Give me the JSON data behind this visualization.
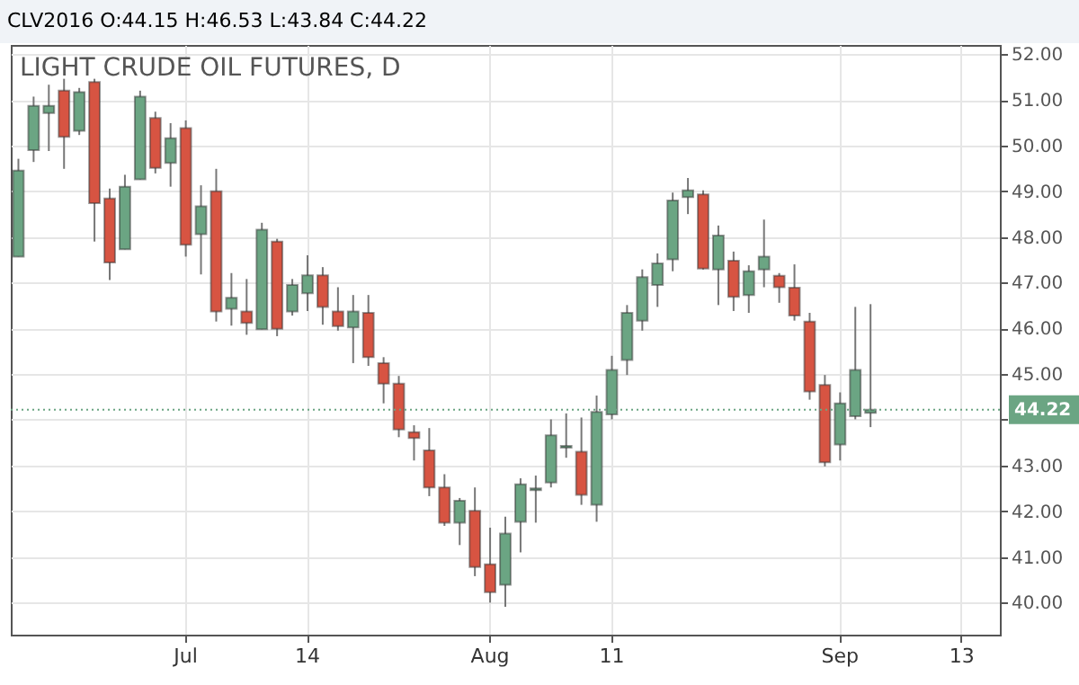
{
  "chart_data": {
    "type": "candlestick",
    "title": "LIGHT CRUDE OIL FUTURES, D",
    "annotations": [
      "CLV2016 O:44.15 H:46.53 L:43.84 C:44.22"
    ],
    "categories": [
      null,
      null,
      null,
      null,
      null,
      null,
      null,
      null,
      null,
      null,
      null,
      "Jul",
      null,
      null,
      null,
      null,
      null,
      null,
      null,
      "14",
      null,
      null,
      null,
      null,
      null,
      null,
      null,
      null,
      null,
      null,
      null,
      "Aug",
      null,
      null,
      null,
      null,
      null,
      null,
      null,
      "11",
      null,
      null,
      null,
      null,
      null,
      null,
      null,
      null,
      null,
      null,
      null,
      null,
      null,
      null,
      "Sep",
      null,
      null,
      null,
      null,
      null,
      null,
      null,
      "13",
      null,
      null
    ],
    "ohlc": [
      [
        47.57,
        49.71,
        47.57,
        49.45
      ],
      [
        49.9,
        51.07,
        49.64,
        50.87
      ],
      [
        50.71,
        51.33,
        49.88,
        50.87
      ],
      [
        51.2,
        51.46,
        49.49,
        50.19
      ],
      [
        50.32,
        51.26,
        50.23,
        51.17
      ],
      [
        51.39,
        51.46,
        47.9,
        48.74
      ],
      [
        48.84,
        49.06,
        47.06,
        47.44
      ],
      [
        47.73,
        49.36,
        47.73,
        49.1
      ],
      [
        49.26,
        51.2,
        49.26,
        51.07
      ],
      [
        50.6,
        50.74,
        49.39,
        49.51
      ],
      [
        49.62,
        50.49,
        49.1,
        50.16
      ],
      [
        50.38,
        50.55,
        47.57,
        47.83
      ],
      [
        48.06,
        49.13,
        47.18,
        48.67
      ],
      [
        49.0,
        49.49,
        46.15,
        46.37
      ],
      [
        46.43,
        47.21,
        46.06,
        46.67
      ],
      [
        46.37,
        47.08,
        45.86,
        46.12
      ],
      [
        45.98,
        48.31,
        45.98,
        48.16
      ],
      [
        47.9,
        47.96,
        45.83,
        45.99
      ],
      [
        46.37,
        47.08,
        46.28,
        46.95
      ],
      [
        46.77,
        47.6,
        46.38,
        47.16
      ],
      [
        47.16,
        47.34,
        46.08,
        46.47
      ],
      [
        46.37,
        46.9,
        45.95,
        46.05
      ],
      [
        46.02,
        46.73,
        45.24,
        46.37
      ],
      [
        46.34,
        46.73,
        45.18,
        45.37
      ],
      [
        45.24,
        45.37,
        44.36,
        44.79
      ],
      [
        44.79,
        44.96,
        43.62,
        43.79
      ],
      [
        43.73,
        43.88,
        43.11,
        43.6
      ],
      [
        43.33,
        43.82,
        42.33,
        42.52
      ],
      [
        42.52,
        42.81,
        41.68,
        41.75
      ],
      [
        41.75,
        42.29,
        41.26,
        42.23
      ],
      [
        42.01,
        42.52,
        40.58,
        40.78
      ],
      [
        40.84,
        41.64,
        40.0,
        40.23
      ],
      [
        40.39,
        41.88,
        39.91,
        41.51
      ],
      [
        41.77,
        42.72,
        41.1,
        42.59
      ],
      [
        42.46,
        42.78,
        41.75,
        42.5
      ],
      [
        42.63,
        44.01,
        42.52,
        43.66
      ],
      [
        43.39,
        44.14,
        43.17,
        43.43
      ],
      [
        43.3,
        44.05,
        42.14,
        42.36
      ],
      [
        42.14,
        44.53,
        41.77,
        44.17
      ],
      [
        44.12,
        45.4,
        44.01,
        45.09
      ],
      [
        45.31,
        46.51,
        44.98,
        46.34
      ],
      [
        46.17,
        47.29,
        45.95,
        47.12
      ],
      [
        46.95,
        47.64,
        46.47,
        47.42
      ],
      [
        47.51,
        48.97,
        47.25,
        48.8
      ],
      [
        48.87,
        49.29,
        48.5,
        49.02
      ],
      [
        48.93,
        49.02,
        47.29,
        47.31
      ],
      [
        47.29,
        48.25,
        46.51,
        48.03
      ],
      [
        47.48,
        47.68,
        46.38,
        46.69
      ],
      [
        46.73,
        47.38,
        46.34,
        47.25
      ],
      [
        47.29,
        48.38,
        46.9,
        47.57
      ],
      [
        47.15,
        47.21,
        46.56,
        46.9
      ],
      [
        46.89,
        47.4,
        46.17,
        46.28
      ],
      [
        46.15,
        46.34,
        44.44,
        44.62
      ],
      [
        44.76,
        44.98,
        42.98,
        43.07
      ],
      [
        43.46,
        44.6,
        43.11,
        44.36
      ],
      [
        44.08,
        46.47,
        44.01,
        45.09
      ],
      [
        44.15,
        46.53,
        43.84,
        44.22
      ],
      null,
      null,
      null,
      null,
      null,
      null,
      null,
      null
    ],
    "colors": [
      "#6ba583",
      "#6ba583",
      "#6ba583",
      "#d75442",
      "#6ba583",
      "#d75442",
      "#d75442",
      "#6ba583",
      "#6ba583",
      "#d75442",
      "#6ba583",
      "#d75442",
      "#6ba583",
      "#d75442",
      "#6ba583",
      "#d75442",
      "#6ba583",
      "#d75442",
      "#6ba583",
      "#6ba583",
      "#d75442",
      "#d75442",
      "#6ba583",
      "#d75442",
      "#d75442",
      "#d75442",
      "#d75442",
      "#d75442",
      "#d75442",
      "#6ba583",
      "#d75442",
      "#d75442",
      "#6ba583",
      "#6ba583",
      "#6ba583",
      "#6ba583",
      "#6ba583",
      "#d75442",
      "#6ba583",
      "#6ba583",
      "#6ba583",
      "#6ba583",
      "#6ba583",
      "#6ba583",
      "#6ba583",
      "#d75442",
      "#6ba583",
      "#d75442",
      "#6ba583",
      "#6ba583",
      "#d75442",
      "#d75442",
      "#d75442",
      "#d75442",
      "#6ba583",
      "#6ba583",
      "#6ba583",
      null,
      null,
      null,
      null,
      null,
      null,
      null,
      null
    ],
    "ylim": [
      39.3,
      52.2
    ],
    "yticks": [
      {
        "value": 40,
        "label": "40.00"
      },
      {
        "value": 41,
        "label": "41.00"
      },
      {
        "value": 42,
        "label": "42.00"
      },
      {
        "value": 43,
        "label": "43.00"
      },
      {
        "value": 44,
        "label": null
      },
      {
        "value": 45,
        "label": "45.00"
      },
      {
        "value": 46,
        "label": "46.00"
      },
      {
        "value": 47,
        "label": "47.00"
      },
      {
        "value": 48,
        "label": "48.00"
      },
      {
        "value": 49,
        "label": "49.00"
      },
      {
        "value": 50,
        "label": "50.00"
      },
      {
        "value": 51,
        "label": "51.00"
      },
      {
        "value": 52,
        "label": "52.00"
      }
    ],
    "ref_lines": [
      {
        "axis": "y",
        "value": 44.22,
        "label": "44.22",
        "color": "#6ba583",
        "line_style": "dotted"
      }
    ],
    "grid": true
  }
}
